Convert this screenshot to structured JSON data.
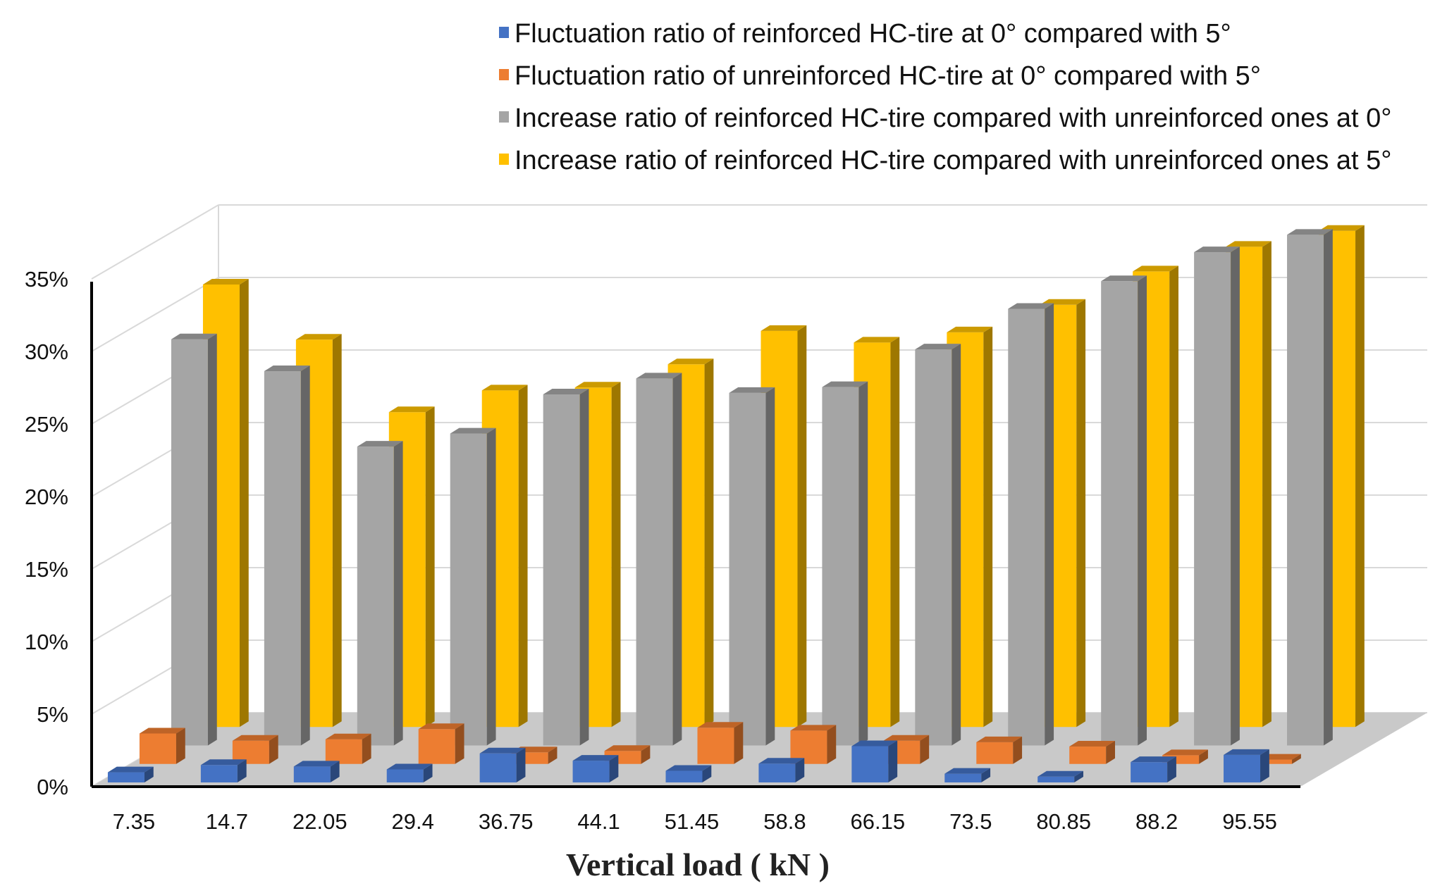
{
  "chart_data": {
    "type": "bar",
    "variant": "3d-clustered-depth",
    "title": "",
    "xlabel": "Vertical load ( kN )",
    "ylabel": "",
    "ylim": [
      0,
      35
    ],
    "y_unit": "%",
    "yticks": [
      "0%",
      "5%",
      "10%",
      "15%",
      "20%",
      "25%",
      "30%",
      "35%"
    ],
    "grid": true,
    "legend_position": "top-right",
    "categories": [
      "7.35",
      "14.7",
      "22.05",
      "29.4",
      "36.75",
      "44.1",
      "51.45",
      "58.8",
      "66.15",
      "73.5",
      "80.85",
      "88.2",
      "95.55"
    ],
    "series": [
      {
        "name": "Fluctuation ratio of reinforced HC-tire at 0° compared with 5°",
        "color": "#4472C4",
        "values": [
          0.7,
          1.2,
          1.1,
          0.9,
          2.0,
          1.5,
          0.8,
          1.3,
          2.5,
          0.6,
          0.4,
          1.4,
          1.9
        ]
      },
      {
        "name": "Fluctuation ratio of unreinforced HC-tire at 0° compared with 5°",
        "color": "#ED7D31",
        "values": [
          2.1,
          1.6,
          1.7,
          2.4,
          0.8,
          0.9,
          2.5,
          2.3,
          1.6,
          1.5,
          1.2,
          0.6,
          0.3
        ]
      },
      {
        "name": "Increase ratio of reinforced HC-tire compared with unreinforced ones at 0°",
        "color": "#A5A5A5",
        "values": [
          28.0,
          25.8,
          20.6,
          21.5,
          24.2,
          25.3,
          24.3,
          24.7,
          27.3,
          30.1,
          32.0,
          34.0,
          35.2
        ]
      },
      {
        "name": "Increase ratio of reinforced HC-tire compared with unreinforced ones at 5°",
        "color": "#FFC000",
        "values": [
          30.5,
          26.7,
          21.7,
          23.2,
          23.4,
          25.0,
          27.3,
          26.5,
          27.2,
          29.1,
          31.4,
          33.1,
          34.2
        ]
      }
    ]
  }
}
